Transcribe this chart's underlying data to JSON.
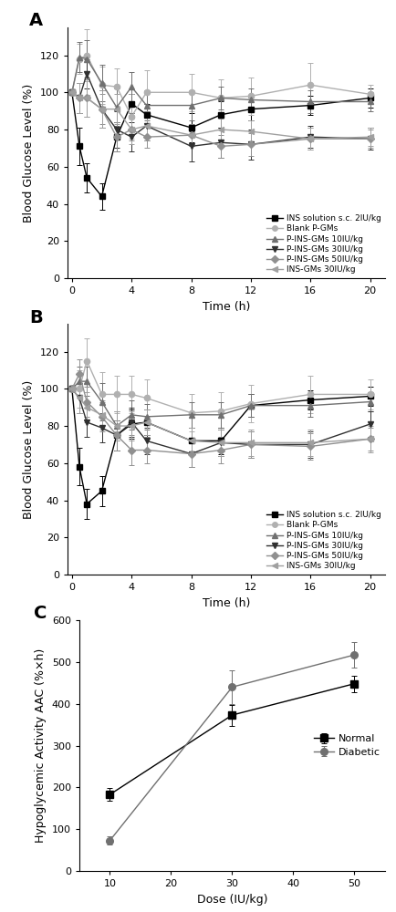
{
  "panel_A": {
    "time": [
      0,
      0.5,
      1,
      2,
      3,
      4,
      5,
      8,
      10,
      12,
      16,
      20
    ],
    "INS_sc": {
      "y": [
        100,
        71,
        54,
        44,
        76,
        94,
        88,
        81,
        88,
        91,
        93,
        97
      ],
      "yerr": [
        0,
        10,
        8,
        7,
        8,
        5,
        6,
        8,
        7,
        6,
        5,
        5
      ]
    },
    "Blank": {
      "y": [
        100,
        118,
        120,
        104,
        103,
        87,
        100,
        100,
        97,
        98,
        104,
        99
      ],
      "yerr": [
        0,
        8,
        14,
        10,
        10,
        12,
        12,
        10,
        10,
        10,
        12,
        5
      ]
    },
    "PINS10": {
      "y": [
        100,
        119,
        118,
        105,
        92,
        103,
        93,
        93,
        97,
        96,
        95,
        95
      ],
      "yerr": [
        0,
        8,
        10,
        10,
        10,
        8,
        8,
        8,
        6,
        6,
        6,
        5
      ]
    },
    "PINS30": {
      "y": [
        100,
        97,
        110,
        91,
        80,
        76,
        82,
        71,
        73,
        72,
        76,
        75
      ],
      "yerr": [
        0,
        8,
        8,
        10,
        10,
        8,
        8,
        8,
        8,
        8,
        6,
        6
      ]
    },
    "PINS50": {
      "y": [
        100,
        97,
        97,
        91,
        76,
        80,
        76,
        77,
        71,
        72,
        75,
        75
      ],
      "yerr": [
        0,
        8,
        10,
        8,
        8,
        6,
        6,
        6,
        6,
        6,
        6,
        5
      ]
    },
    "INSGMs30": {
      "y": [
        100,
        97,
        97,
        91,
        91,
        80,
        82,
        77,
        80,
        79,
        75,
        76
      ],
      "yerr": [
        0,
        8,
        10,
        10,
        8,
        8,
        8,
        6,
        6,
        6,
        6,
        5
      ]
    }
  },
  "panel_B": {
    "time": [
      0,
      0.5,
      1,
      2,
      3,
      4,
      5,
      8,
      10,
      12,
      16,
      20
    ],
    "INS_sc": {
      "y": [
        100,
        58,
        38,
        45,
        75,
        81,
        82,
        72,
        72,
        91,
        94,
        96
      ],
      "yerr": [
        0,
        10,
        8,
        8,
        8,
        8,
        7,
        7,
        7,
        6,
        5,
        5
      ]
    },
    "Blank": {
      "y": [
        100,
        100,
        115,
        97,
        97,
        97,
        95,
        87,
        88,
        92,
        97,
        97
      ],
      "yerr": [
        0,
        10,
        12,
        12,
        10,
        10,
        10,
        10,
        10,
        10,
        10,
        8
      ]
    },
    "PINS10": {
      "y": [
        100,
        104,
        104,
        93,
        80,
        86,
        85,
        86,
        86,
        91,
        91,
        93
      ],
      "yerr": [
        0,
        8,
        8,
        10,
        8,
        8,
        7,
        7,
        7,
        6,
        6,
        5
      ]
    },
    "PINS30": {
      "y": [
        100,
        95,
        82,
        79,
        75,
        82,
        72,
        65,
        71,
        70,
        70,
        81
      ],
      "yerr": [
        0,
        8,
        8,
        8,
        8,
        8,
        7,
        7,
        7,
        7,
        7,
        7
      ]
    },
    "PINS50": {
      "y": [
        100,
        108,
        93,
        85,
        75,
        67,
        67,
        65,
        67,
        70,
        69,
        73
      ],
      "yerr": [
        0,
        8,
        8,
        8,
        8,
        8,
        7,
        7,
        7,
        7,
        7,
        6
      ]
    },
    "INSGMs30": {
      "y": [
        100,
        95,
        90,
        86,
        80,
        80,
        82,
        72,
        71,
        71,
        71,
        73
      ],
      "yerr": [
        0,
        8,
        8,
        8,
        8,
        8,
        7,
        7,
        7,
        7,
        7,
        7
      ]
    }
  },
  "panel_C": {
    "dose": [
      10,
      30,
      50
    ],
    "Normal": {
      "y": [
        183,
        373,
        448
      ],
      "yerr": [
        15,
        25,
        20
      ]
    },
    "Diabetic": {
      "y": [
        73,
        440,
        517
      ],
      "yerr": [
        10,
        40,
        30
      ]
    }
  },
  "colors": {
    "INS_sc": "#000000",
    "Blank": "#b0b0b0",
    "PINS10": "#707070",
    "PINS30": "#303030",
    "PINS50": "#909090",
    "INSGMs30": "#a0a0a0",
    "Normal": "#000000",
    "Diabetic": "#707070"
  },
  "legend_labels": [
    "INS solution s.c. 2IU/kg",
    "Blank P-GMs",
    "P-INS-GMs 10IU/kg",
    "P-INS-GMs 30IU/kg",
    "P-INS-GMs 50IU/kg",
    "INS-GMs 30IU/kg"
  ],
  "panel_labels": [
    "A",
    "B",
    "C"
  ],
  "ylabel_AB": "Blood Glucose Level (%)",
  "xlabel_AB": "Time (h)",
  "ylabel_C": "Hypoglycemic Activity AAC (%×h)",
  "xlabel_C": "Dose (IU/kg)"
}
